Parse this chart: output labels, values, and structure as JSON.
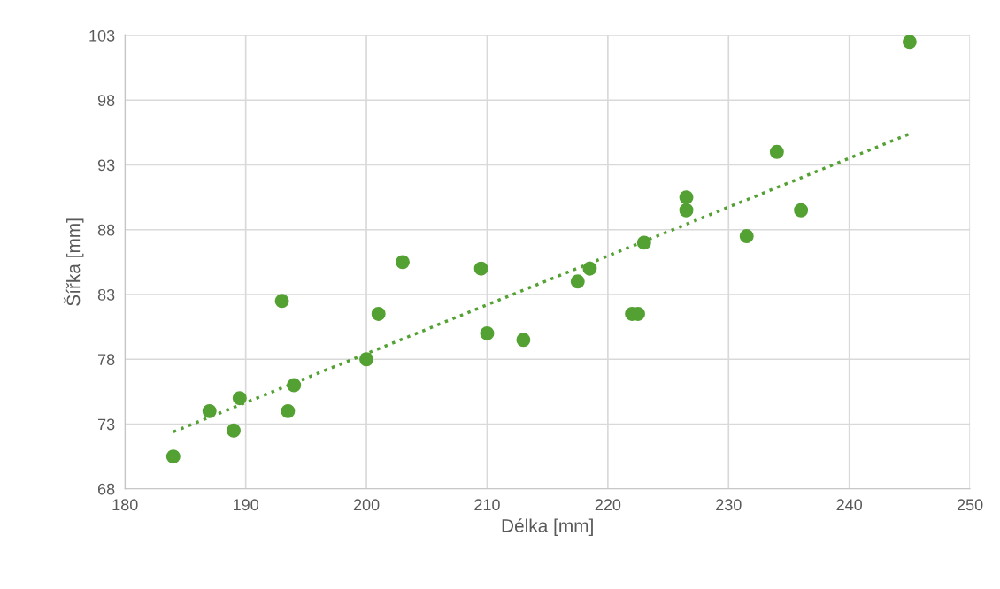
{
  "chart_data": {
    "type": "scatter",
    "xlabel": "Délka [mm]",
    "ylabel": "Šířka [mm]",
    "series": [
      {
        "color": "#54a133",
        "marker": "circle",
        "x": [
          184,
          187,
          189,
          189.5,
          193,
          193.5,
          194,
          200,
          201,
          203,
          209.5,
          210,
          213,
          217.5,
          218.5,
          222,
          222.5,
          223,
          226.5,
          226.5,
          231.5,
          234,
          236,
          245
        ],
        "values": [
          70.5,
          74,
          72.5,
          75,
          82.5,
          74,
          76,
          78,
          81.5,
          85.5,
          85,
          80,
          79.5,
          84,
          85,
          81.5,
          81.5,
          87,
          90.5,
          89.5,
          87.5,
          94,
          89.5,
          102.5
        ]
      },
      {
        "type": "line",
        "color": "#54a133",
        "line_style": "dotted",
        "marker": "none",
        "x": [
          184,
          245
        ],
        "values": [
          72.4,
          95.4
        ]
      }
    ],
    "xlim": [
      180,
      250
    ],
    "xticks": [
      180,
      190,
      200,
      210,
      220,
      230,
      240,
      250
    ],
    "ylim": [
      68,
      103
    ],
    "yticks": [
      68,
      73,
      78,
      83,
      88,
      93,
      98,
      103
    ],
    "grid": true,
    "legend": false
  }
}
